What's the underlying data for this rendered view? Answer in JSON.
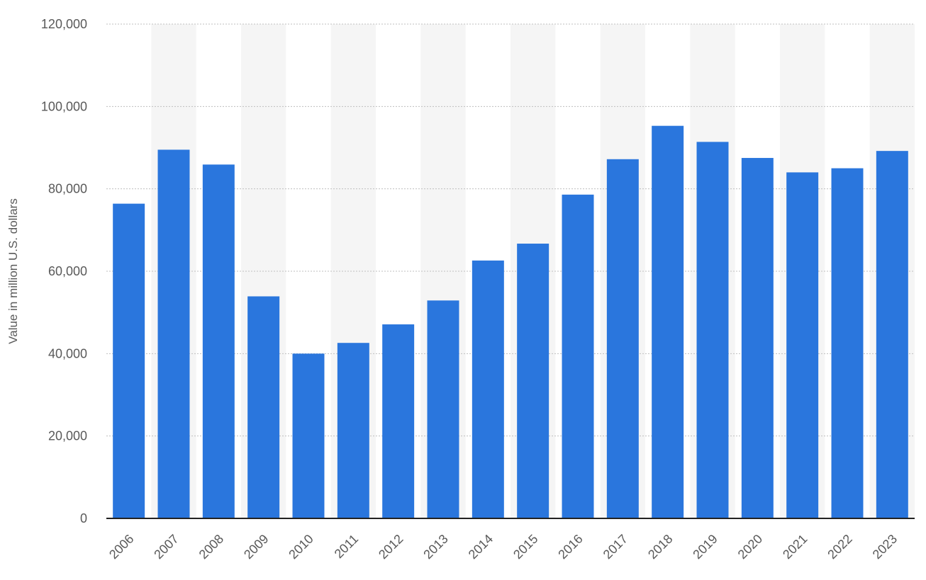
{
  "chart_data": {
    "type": "bar",
    "title": "",
    "xlabel": "",
    "ylabel": "Value in million U.S. dollars",
    "ylim": [
      0,
      120000
    ],
    "yticks": [
      0,
      20000,
      40000,
      60000,
      80000,
      100000,
      120000
    ],
    "ytick_labels": [
      "0",
      "20,000",
      "40,000",
      "60,000",
      "80,000",
      "100,000",
      "120,000"
    ],
    "categories": [
      "2006",
      "2007",
      "2008",
      "2009",
      "2010",
      "2011",
      "2012",
      "2013",
      "2014",
      "2015",
      "2016",
      "2017",
      "2018",
      "2019",
      "2020",
      "2021",
      "2022",
      "2023"
    ],
    "values": [
      76400,
      89500,
      85900,
      53900,
      40000,
      42600,
      47100,
      52900,
      62600,
      66700,
      78600,
      87200,
      95300,
      91400,
      87500,
      84000,
      85000,
      89200
    ],
    "bar_color": "#2a76dd",
    "grid": true,
    "alternating_bands": true,
    "x_tick_rotation": "diagonal"
  }
}
